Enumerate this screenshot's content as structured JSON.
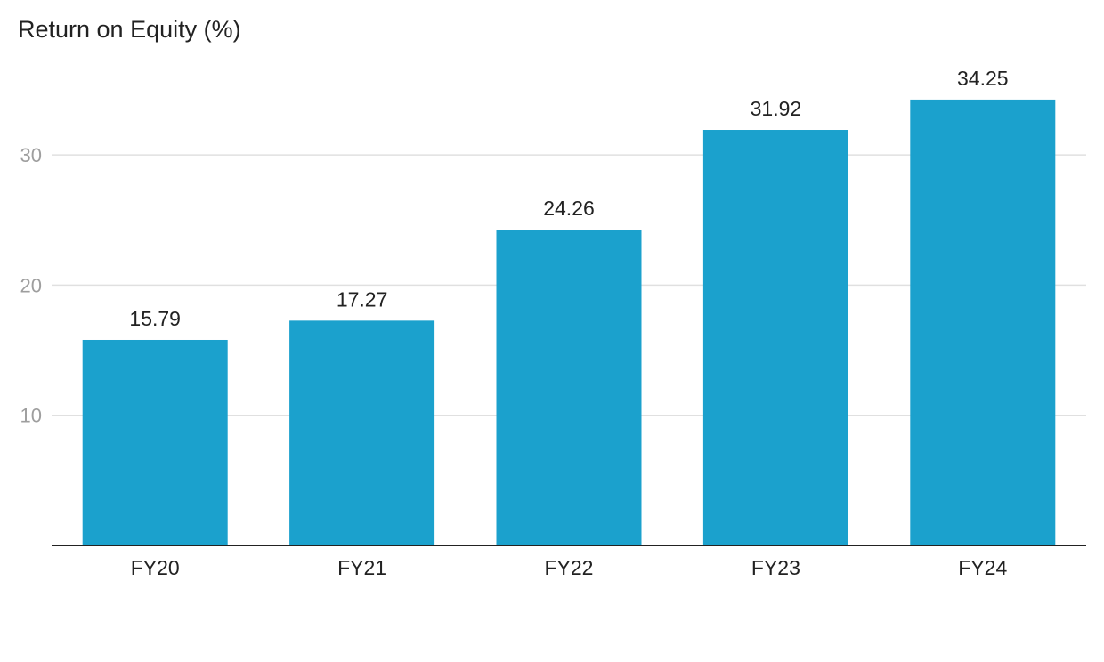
{
  "chart_data": {
    "type": "bar",
    "title": "Return on Equity (%)",
    "categories": [
      "FY20",
      "FY21",
      "FY22",
      "FY23",
      "FY24"
    ],
    "values": [
      15.79,
      17.27,
      24.26,
      31.92,
      34.25
    ],
    "data_labels": [
      "15.79",
      "17.27",
      "24.26",
      "31.92",
      "34.25"
    ],
    "y_ticks": [
      10,
      20,
      30
    ],
    "ylim": [
      0,
      37
    ],
    "grid": true,
    "legend": "none",
    "bar_color": "#1ba1cd",
    "gridline_color": "#e0e0e0",
    "axis_color": "#222222"
  }
}
